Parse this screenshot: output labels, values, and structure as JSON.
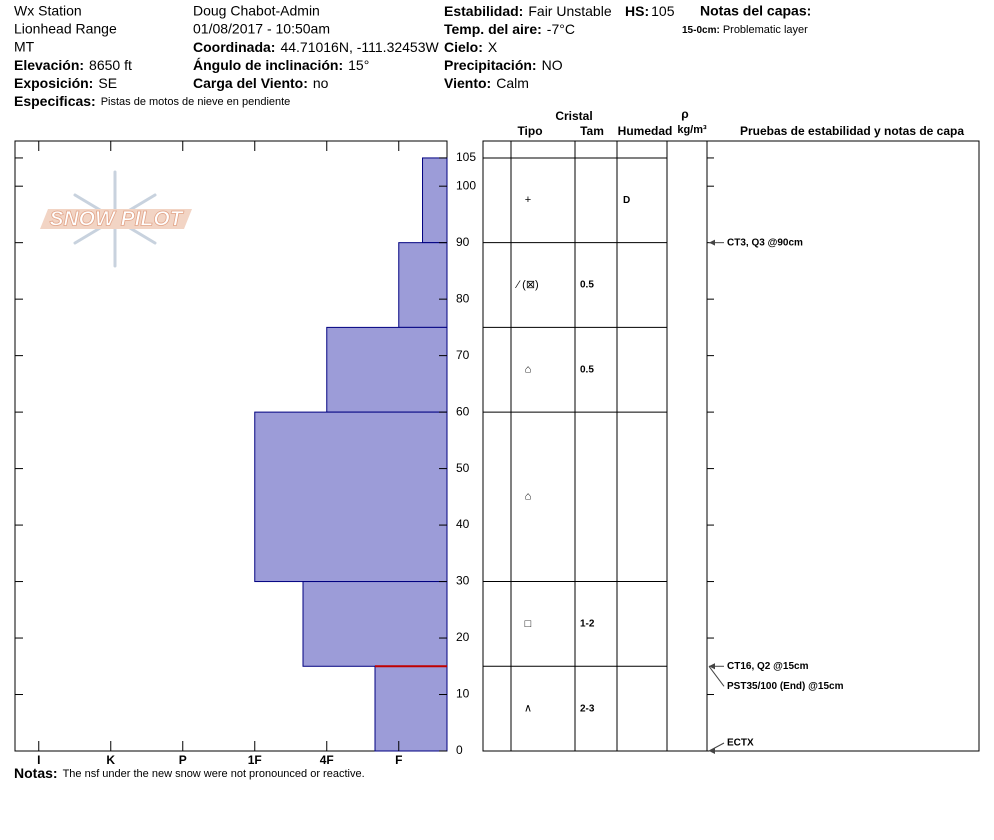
{
  "header": {
    "station": "Wx Station",
    "range": "Lionhead Range",
    "state": "MT",
    "observer": "Doug Chabot-Admin",
    "datetime": "01/08/2017 - 10:50am",
    "elevation": {
      "label": "Elevación:",
      "value": "8650 ft"
    },
    "aspect": {
      "label": "Exposición:",
      "value": "SE"
    },
    "specifics": {
      "label": "Especificas:",
      "value": "Pistas de motos de nieve en pendiente"
    },
    "coordinates": {
      "label": "Coordinada:",
      "value": "44.71016N, -111.32453W"
    },
    "slope": {
      "label": "Ángulo de inclinación:",
      "value": "15°"
    },
    "wind_load": {
      "label": "Carga del Viento:",
      "value": "no"
    },
    "stability": {
      "label": "Estabilidad:",
      "value": "Fair Unstable"
    },
    "hs": {
      "label": "HS:",
      "value": "105"
    },
    "air_temp": {
      "label": "Temp. del aire:",
      "value": "-7°C"
    },
    "sky": {
      "label": "Cielo:",
      "value": "X"
    },
    "precipitation": {
      "label": "Precipitación:",
      "value": "NO"
    },
    "wind": {
      "label": "Viento:",
      "value": "Calm"
    },
    "layer_notes": {
      "title": "Notas del capas:",
      "items": [
        {
          "label": "15-0cm:",
          "value": "Problematic layer"
        }
      ]
    }
  },
  "logo": "SNOW PILOT",
  "chart_data": {
    "type": "snowprofile",
    "ylim": [
      0,
      108
    ],
    "yticks": [
      0,
      10,
      20,
      30,
      40,
      50,
      60,
      70,
      80,
      90,
      100,
      105
    ],
    "xlim": [
      6.33,
      0.33
    ],
    "xticks": [
      {
        "value": 6,
        "label": "I"
      },
      {
        "value": 5,
        "label": "K"
      },
      {
        "value": 4,
        "label": "P"
      },
      {
        "value": 3,
        "label": "1F"
      },
      {
        "value": 2,
        "label": "4F"
      },
      {
        "value": 1,
        "label": "F"
      }
    ],
    "color": "#9c9cd8",
    "concern_depth": 15,
    "concern_color": "#c00000",
    "columns": {
      "crystal": "Cristal",
      "type": "Tipo",
      "size": "Tam",
      "moisture": "Humedad",
      "density": "ρ",
      "density_unit": "kg/m³",
      "tests": "Pruebas de estabilidad y notas de capa"
    },
    "layers": [
      {
        "top": 105,
        "bottom": 90,
        "hardness": 0.67,
        "crystal": "+",
        "moisture": "D"
      },
      {
        "top": 90,
        "bottom": 75,
        "hardness": 1,
        "crystal": "⁄ (⊠)",
        "size": "0.5"
      },
      {
        "top": 75,
        "bottom": 60,
        "hardness": 2,
        "crystal": "⌂",
        "size": "0.5"
      },
      {
        "top": 60,
        "bottom": 30,
        "hardness": 3,
        "crystal": "⌂"
      },
      {
        "top": 30,
        "bottom": 15,
        "hardness": 2.33,
        "crystal": "□",
        "size": "1-2"
      },
      {
        "top": 15,
        "bottom": 0,
        "hardness": 1.33,
        "crystal": "∧",
        "size": "2-3"
      }
    ],
    "tests": [
      {
        "depth": 90,
        "label": "CT3, Q3 @90cm"
      },
      {
        "depth": 15,
        "label": "CT16, Q2 @15cm"
      },
      {
        "depth": 15,
        "label": "PST35/100 (End) @15cm"
      },
      {
        "depth": 0,
        "label": "ECTX"
      }
    ]
  },
  "notes": {
    "label": "Notas:",
    "value": "The nsf under the new snow were not pronounced or reactive."
  }
}
